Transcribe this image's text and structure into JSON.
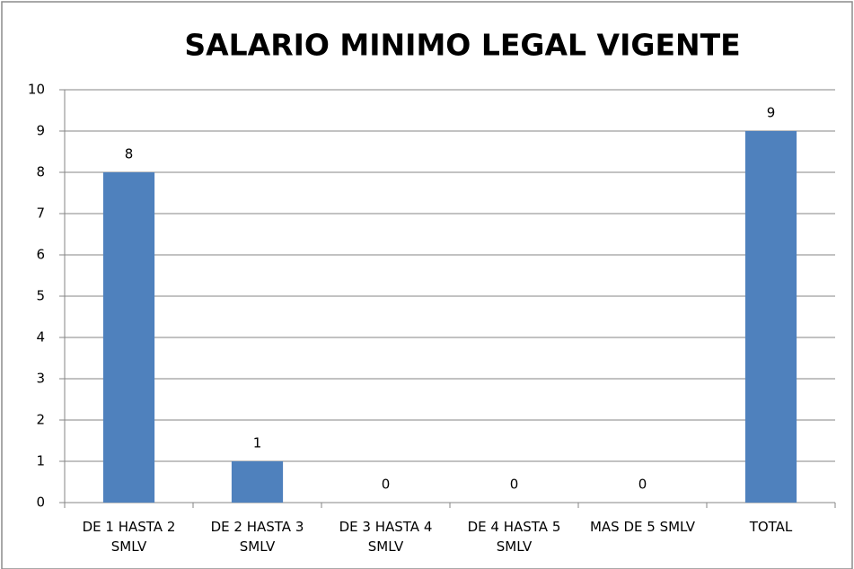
{
  "chart_data": {
    "type": "bar",
    "title": "SALARIO MINIMO LEGAL VIGENTE",
    "categories": [
      "DE 1 HASTA 2 SMLV",
      "DE 2 HASTA 3 SMLV",
      "DE 3 HASTA 4 SMLV",
      "DE 4 HASTA 5 SMLV",
      "MAS DE 5 SMLV",
      "TOTAL"
    ],
    "values": [
      8,
      1,
      0,
      0,
      0,
      9
    ],
    "color": "#4f81bd",
    "ylim": [
      0,
      10
    ],
    "yticks": [
      0,
      1,
      2,
      3,
      4,
      5,
      6,
      7,
      8,
      9,
      10
    ],
    "grid": true,
    "data_labels": true
  }
}
